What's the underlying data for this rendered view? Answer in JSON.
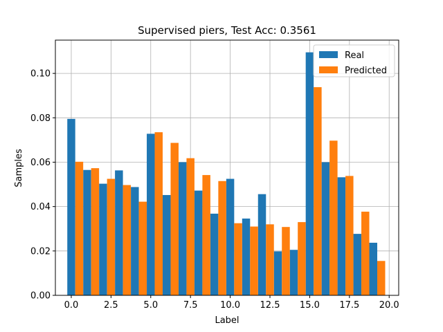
{
  "chart_data": {
    "type": "bar",
    "title": "Supervised piers, Test Acc: 0.3561",
    "xlabel": "Label",
    "ylabel": "Samples",
    "xlim": [
      -1,
      20.6
    ],
    "ylim": [
      0,
      0.115
    ],
    "xticks": [
      0.0,
      2.5,
      5.0,
      7.5,
      10.0,
      12.5,
      15.0,
      17.5,
      20.0
    ],
    "xtick_labels": [
      "0.0",
      "2.5",
      "5.0",
      "7.5",
      "10.0",
      "12.5",
      "15.0",
      "17.5",
      "20.0"
    ],
    "yticks": [
      0.0,
      0.02,
      0.04,
      0.06,
      0.08,
      0.1
    ],
    "ytick_labels": [
      "0.00",
      "0.02",
      "0.04",
      "0.06",
      "0.08",
      "0.10"
    ],
    "grid": true,
    "legend_position": "top-right",
    "bar_width": 0.5,
    "x": [
      0,
      1,
      2,
      3,
      4,
      5,
      6,
      7,
      8,
      9,
      10,
      11,
      12,
      13,
      14,
      15,
      16,
      17,
      18,
      19
    ],
    "series": [
      {
        "name": "Real",
        "color": "#1f77b4",
        "offset": 0,
        "values": [
          0.0795,
          0.0565,
          0.0503,
          0.0563,
          0.0488,
          0.0728,
          0.0452,
          0.06,
          0.0472,
          0.0368,
          0.0525,
          0.0346,
          0.0456,
          0.0198,
          0.0205,
          0.1095,
          0.06,
          0.0532,
          0.0277,
          0.0237
        ]
      },
      {
        "name": "Predicted",
        "color": "#ff7f0e",
        "offset": 0.5,
        "values": [
          0.0602,
          0.0573,
          0.0525,
          0.0497,
          0.0422,
          0.0735,
          0.0687,
          0.0618,
          0.0542,
          0.0515,
          0.0325,
          0.031,
          0.032,
          0.0308,
          0.033,
          0.0938,
          0.0697,
          0.0538,
          0.0377,
          0.0155
        ]
      }
    ]
  }
}
